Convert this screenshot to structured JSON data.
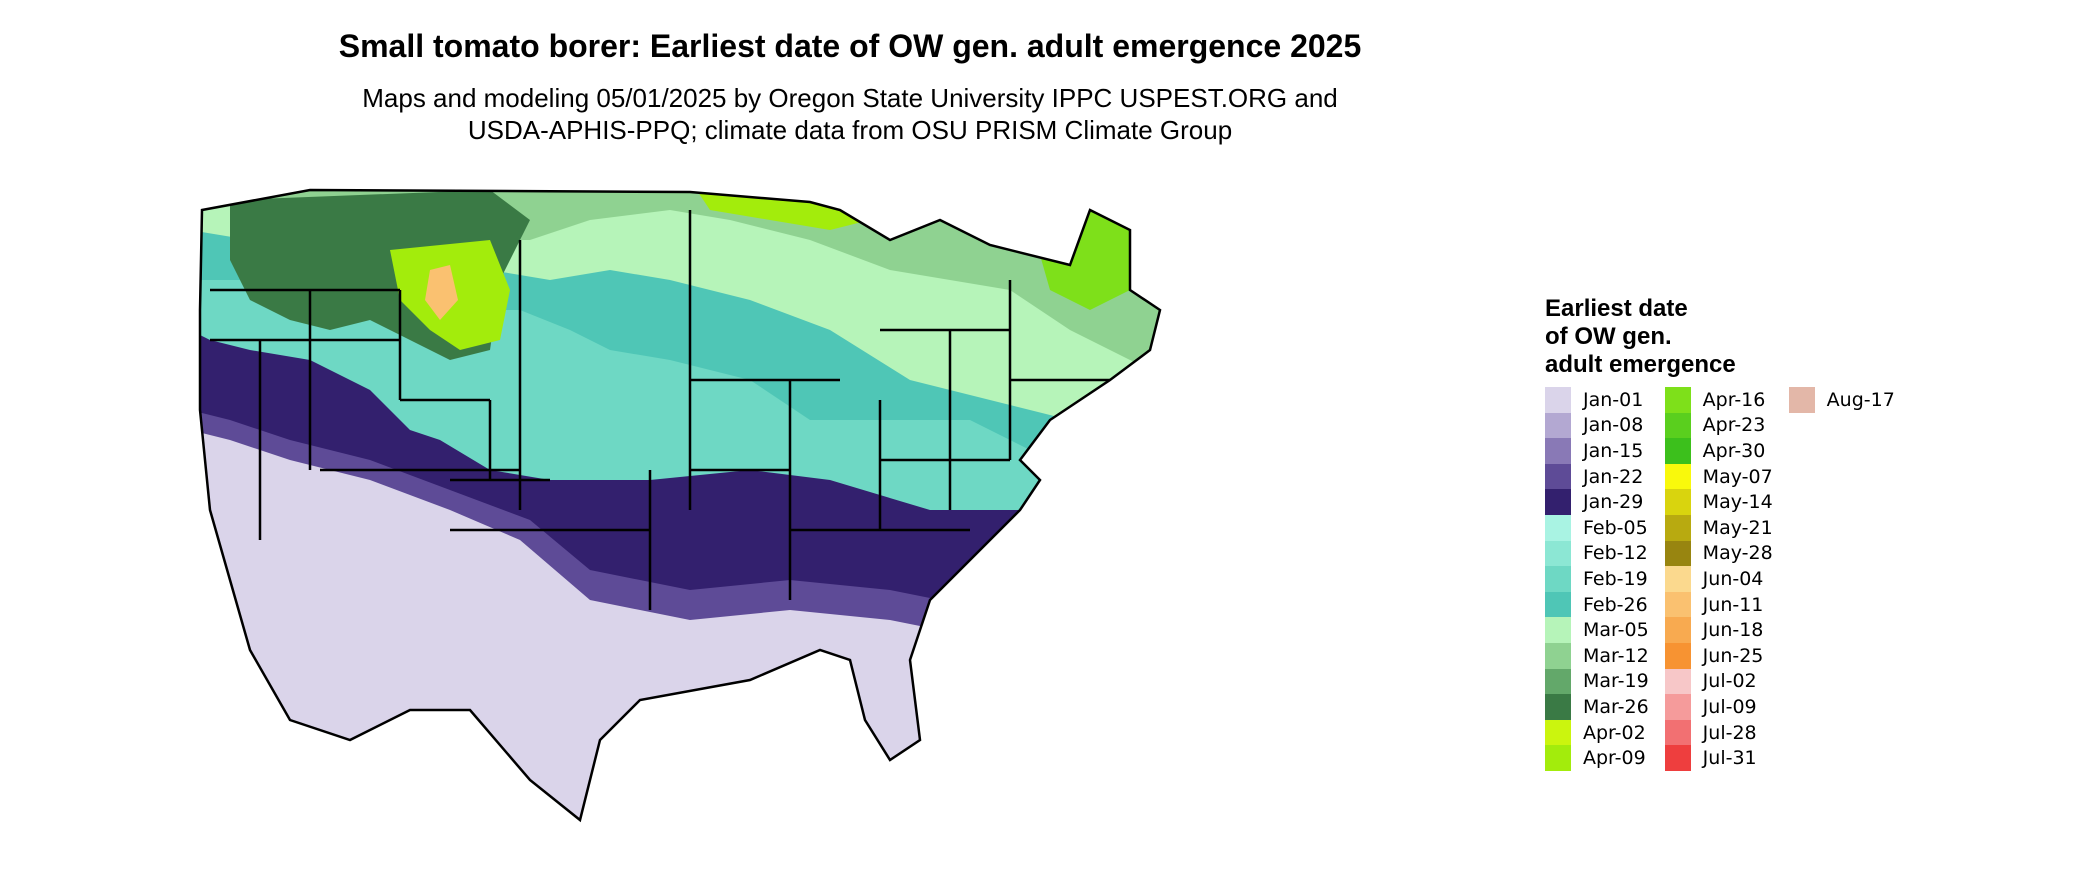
{
  "title": "Small tomato borer: Earliest date of OW gen. adult emergence 2025",
  "subtitle_line1": "Maps and modeling 05/01/2025 by Oregon State University IPPC USPEST.ORG and",
  "subtitle_line2": "USDA-APHIS-PPQ; climate data from OSU PRISM Climate Group",
  "legend": {
    "title_lines": [
      "Earliest date",
      "of OW gen.",
      "adult emergence"
    ],
    "columns": [
      [
        {
          "label": "Jan-01",
          "color": "#dad4ea"
        },
        {
          "label": "Jan-08",
          "color": "#b3a8d2"
        },
        {
          "label": "Jan-15",
          "color": "#8979b6"
        },
        {
          "label": "Jan-22",
          "color": "#5e4b97"
        },
        {
          "label": "Jan-29",
          "color": "#33206e"
        },
        {
          "label": "Feb-05",
          "color": "#a9f3e3"
        },
        {
          "label": "Feb-12",
          "color": "#8ce7d4"
        },
        {
          "label": "Feb-19",
          "color": "#6ed8c4"
        },
        {
          "label": "Feb-26",
          "color": "#4fc6b6"
        },
        {
          "label": "Mar-05",
          "color": "#b6f4b9"
        },
        {
          "label": "Mar-12",
          "color": "#8fd291"
        },
        {
          "label": "Mar-19",
          "color": "#63a86a"
        },
        {
          "label": "Mar-26",
          "color": "#3a7a45"
        },
        {
          "label": "Apr-02",
          "color": "#cbf50e"
        },
        {
          "label": "Apr-09",
          "color": "#a3ec0c"
        }
      ],
      [
        {
          "label": "Apr-16",
          "color": "#7ee01a"
        },
        {
          "label": "Apr-23",
          "color": "#5acf1e"
        },
        {
          "label": "Apr-30",
          "color": "#3cc01c"
        },
        {
          "label": "May-07",
          "color": "#f9f90c"
        },
        {
          "label": "May-14",
          "color": "#d9d40e"
        },
        {
          "label": "May-21",
          "color": "#b8aa10"
        },
        {
          "label": "May-28",
          "color": "#988510"
        },
        {
          "label": "Jun-04",
          "color": "#fbd98e"
        },
        {
          "label": "Jun-11",
          "color": "#fac170"
        },
        {
          "label": "Jun-18",
          "color": "#f8aa50"
        },
        {
          "label": "Jun-25",
          "color": "#f79332"
        },
        {
          "label": "Jul-02",
          "color": "#f7c7c8"
        },
        {
          "label": "Jul-09",
          "color": "#f59b9b"
        },
        {
          "label": "Jul-28",
          "color": "#f27072"
        },
        {
          "label": "Jul-31",
          "color": "#ee3e3e"
        }
      ],
      [
        {
          "label": "Aug-17",
          "color": "#e3b7a8"
        }
      ]
    ]
  },
  "map_colors": {
    "outline": "#000000",
    "south": "#dad4ea",
    "jan22": "#5e4b97",
    "jan29": "#33206e",
    "feb": "#6ed8c4",
    "feb26": "#4fc6b6",
    "mar05": "#b6f4b9",
    "mar12": "#8fd291",
    "mar26": "#3a7a45",
    "apr": "#a3ec0c",
    "apr16": "#7ee01a",
    "high": "#fac170"
  }
}
